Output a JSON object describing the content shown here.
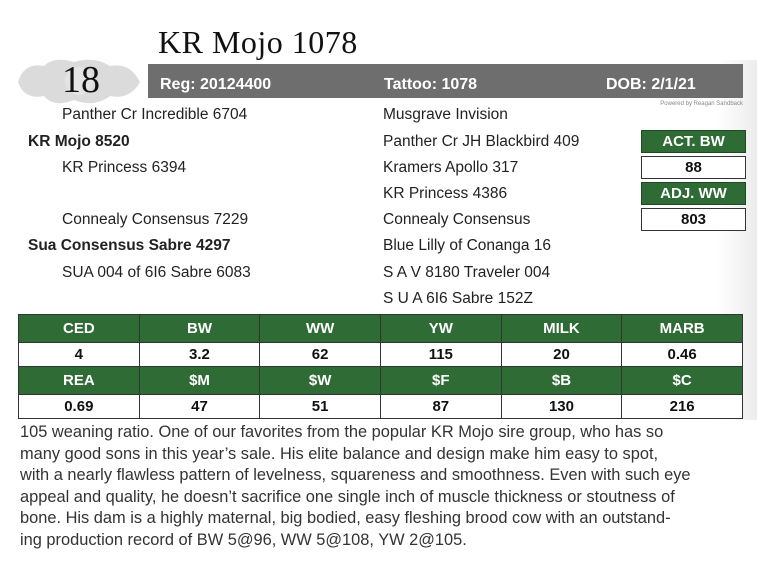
{
  "title": "KR Mojo 1078",
  "lot_number": "18",
  "info_bar": {
    "reg": "Reg: 20124400",
    "tattoo": "Tattoo: 1078",
    "dob": "DOB: 2/1/21"
  },
  "credit": "Powered by Reagan Sandback",
  "pedigree": {
    "sire_sire": "Panther Cr Incredible 6704",
    "sire": "KR Mojo 8520",
    "sire_dam": "KR Princess 6394",
    "dam_sire": "Connealy Consensus 7229",
    "dam": "Sua Consensus Sabre 4297",
    "dam_dam": "SUA 004 of 6I6 Sabre 6083",
    "right": [
      "Musgrave Invision",
      "Panther Cr JH Blackbird 409",
      "Kramers Apollo 317",
      "KR Princess 4386",
      "Connealy Consensus",
      "Blue Lilly of Conanga 16",
      "S A V 8180 Traveler 004",
      "S U A 6I6 Sabre 152Z"
    ]
  },
  "weights": {
    "act_bw_label": "ACT. BW",
    "act_bw_value": "88",
    "adj_ww_label": "ADJ. WW",
    "adj_ww_value": "803"
  },
  "epd_rows": [
    {
      "headers": [
        "CED",
        "BW",
        "WW",
        "YW",
        "MILK",
        "MARB"
      ],
      "values": [
        "4",
        "3.2",
        "62",
        "115",
        "20",
        "0.46"
      ]
    },
    {
      "headers": [
        "REA",
        "$M",
        "$W",
        "$F",
        "$B",
        "$C"
      ],
      "values": [
        "0.69",
        "47",
        "51",
        "87",
        "130",
        "216"
      ]
    }
  ],
  "description_lines": [
    "105 weaning ratio. One of our favorites from the popular KR Mojo sire group, who has so",
    "many good sons in this year’s sale. His elite balance and design make him easy to spot,",
    "with a nearly flawless pattern of levelness, squareness and smoothness. Even with such eye",
    "appeal and quality, he doesn’t sacrifice one single inch of muscle thickness or stoutness of",
    "bone. His dam is a highly maternal, big bodied, easy fleshing brood cow with an outstand-",
    "ing production record of BW 5@96, WW 5@108, YW 2@105."
  ],
  "colors": {
    "green": "#2f6b35",
    "bar_gray": "#6e6e6e"
  }
}
